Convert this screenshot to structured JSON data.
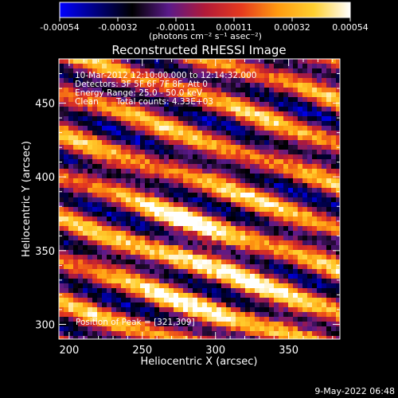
{
  "colorbar": {
    "ticks": [
      "-0.00054",
      "-0.00032",
      "-0.00011",
      "0.00011",
      "0.00032",
      "0.00054"
    ],
    "units_label": "(photons cm⁻² s⁻¹ asec⁻²)",
    "colormap": [
      "#0000ff",
      "#00007f",
      "#000000",
      "#5a1a8a",
      "#b21a38",
      "#e63a1e",
      "#ff9a10",
      "#ffd030",
      "#ffffff"
    ]
  },
  "chart_data": {
    "type": "heatmap",
    "title": "Reconstructed RHESSI Image",
    "xlabel": "Heliocentric X (arcsec)",
    "ylabel": "Heliocentric Y (arcsec)",
    "xlim": [
      193,
      385
    ],
    "ylim": [
      290,
      480
    ],
    "xticks": [
      200,
      250,
      300,
      350
    ],
    "yticks": [
      300,
      350,
      400,
      450
    ],
    "zlim": [
      -0.00054,
      0.00054
    ],
    "peak": [
      321,
      309
    ],
    "pattern": "diagonal alternating positive/negative bands (clean residual noise), strongest emission near x=270-300, y=340-370 and near the bottom",
    "annotations": {
      "time_range": "10-Mar-2012 12:10:00.000 to 12:14:32.000",
      "detectors": "Detectors: 3F 5F 6F 7F 8F, Att 0",
      "energy": "Energy Range: 25.0 - 50.0 keV",
      "clean_label": "Clean",
      "counts": "Total counts: 4.33E+03",
      "peak_text": "Position of Peak = [321,309]"
    }
  },
  "footer": {
    "date": "9-May-2022 06:48"
  }
}
